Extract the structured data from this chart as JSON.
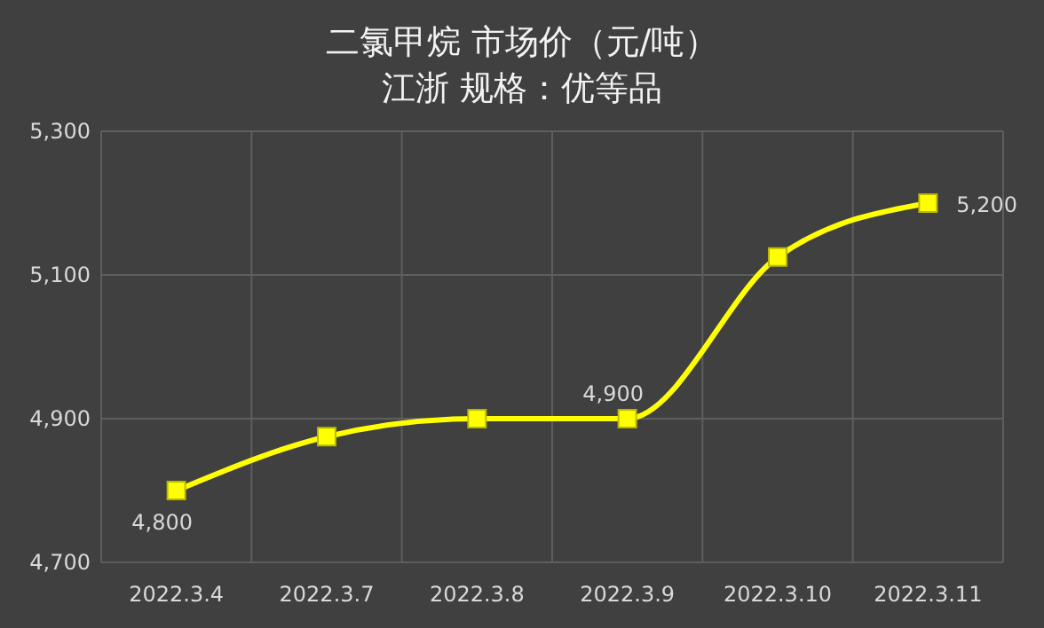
{
  "chart_data": {
    "type": "line",
    "title": "二氯甲烷  市场价（元/吨）",
    "subtitle": "江浙   规格：优等品",
    "categories": [
      "2022.3.4",
      "2022.3.7",
      "2022.3.8",
      "2022.3.9",
      "2022.3.10",
      "2022.3.11"
    ],
    "series": [
      {
        "color": "#ffff00",
        "values": [
          4800,
          4875,
          4900,
          4900,
          5125,
          5200
        ],
        "value_labels": [
          "4,800",
          null,
          null,
          "4,900",
          null,
          "5,200"
        ]
      }
    ],
    "ylim": [
      4700,
      5300
    ],
    "yticks": [
      {
        "value": 4700,
        "label": "4,700"
      },
      {
        "value": 4900,
        "label": "4,900"
      },
      {
        "value": 5100,
        "label": "5,100"
      },
      {
        "value": 5300,
        "label": "5,300"
      }
    ],
    "grid": true,
    "marker": "square",
    "line_style": "solid"
  }
}
